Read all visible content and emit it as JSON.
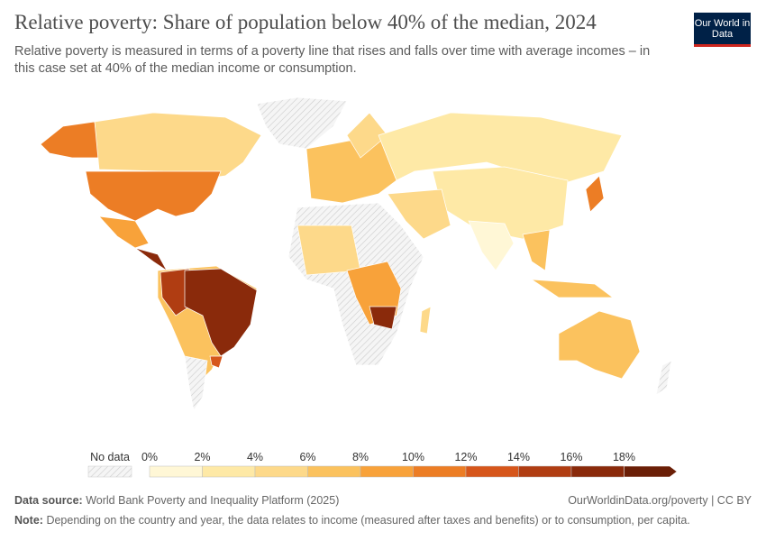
{
  "header": {
    "title": "Relative poverty: Share of population below 40% of the median, 2024",
    "subtitle": "Relative poverty is measured in terms of a poverty line that rises and falls over time with average incomes – in this case set at 40% of the median income or consumption.",
    "logo": "Our World in Data"
  },
  "legend": {
    "no_data_label": "No data",
    "ticks": [
      "0%",
      "2%",
      "4%",
      "6%",
      "8%",
      "10%",
      "12%",
      "14%",
      "16%",
      "18%"
    ],
    "colors": [
      "#fff7d6",
      "#fee9a6",
      "#fdd98a",
      "#fbc25e",
      "#f8a23a",
      "#ec7d25",
      "#d6561b",
      "#b03d12",
      "#8a2a0b",
      "#6b1f07"
    ]
  },
  "footer": {
    "source_label": "Data source:",
    "source": "World Bank Poverty and Inequality Platform (2025)",
    "link": "OurWorldinData.org/poverty | CC BY",
    "note_label": "Note:",
    "note": "Depending on the country and year, the data relates to income (measured after taxes and benefits) or to consumption, per capita."
  }
}
